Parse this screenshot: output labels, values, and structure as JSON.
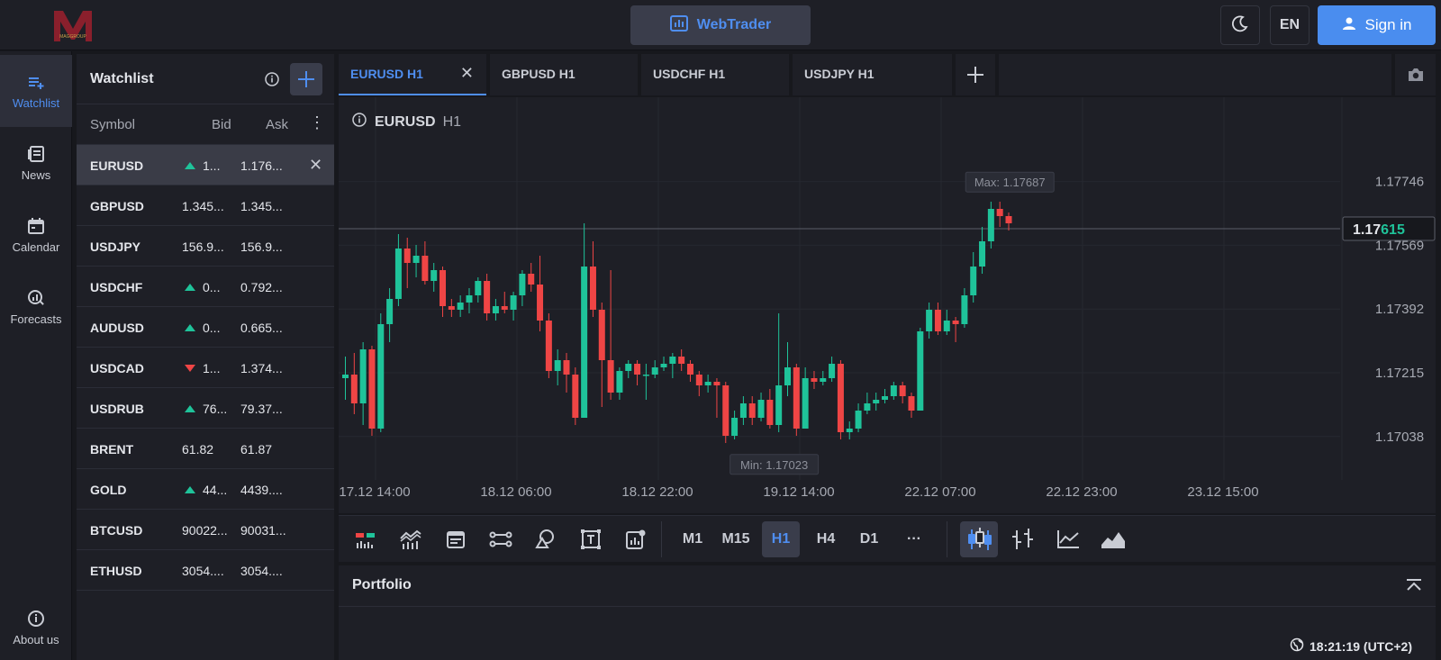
{
  "header": {
    "logo_text": "MAGGROUP",
    "webtrader_label": "WebTrader",
    "language": "EN",
    "signin_label": "Sign in"
  },
  "nav": {
    "items": [
      {
        "label": "Watchlist",
        "icon": "watchlist-icon"
      },
      {
        "label": "News",
        "icon": "news-icon"
      },
      {
        "label": "Calendar",
        "icon": "calendar-icon"
      },
      {
        "label": "Forecasts",
        "icon": "forecasts-icon"
      }
    ],
    "about": "About us"
  },
  "watchlist": {
    "title": "Watchlist",
    "columns": {
      "symbol": "Symbol",
      "bid": "Bid",
      "ask": "Ask"
    },
    "rows": [
      {
        "symbol": "EURUSD",
        "bid": "1...",
        "ask": "1.176...",
        "dir": "up"
      },
      {
        "symbol": "GBPUSD",
        "bid": "1.345...",
        "ask": "1.345...",
        "dir": ""
      },
      {
        "symbol": "USDJPY",
        "bid": "156.9...",
        "ask": "156.9...",
        "dir": ""
      },
      {
        "symbol": "USDCHF",
        "bid": "0...",
        "ask": "0.792...",
        "dir": "up"
      },
      {
        "symbol": "AUDUSD",
        "bid": "0...",
        "ask": "0.665...",
        "dir": "up"
      },
      {
        "symbol": "USDCAD",
        "bid": "1...",
        "ask": "1.374...",
        "dir": "down"
      },
      {
        "symbol": "USDRUB",
        "bid": "76...",
        "ask": "79.37...",
        "dir": "up"
      },
      {
        "symbol": "BRENT",
        "bid": "61.82",
        "ask": "61.87",
        "dir": ""
      },
      {
        "symbol": "GOLD",
        "bid": "44...",
        "ask": "4439....",
        "dir": "up"
      },
      {
        "symbol": "BTCUSD",
        "bid": "90022...",
        "ask": "90031...",
        "dir": ""
      },
      {
        "symbol": "ETHUSD",
        "bid": "3054....",
        "ask": "3054....",
        "dir": ""
      }
    ]
  },
  "tabs": [
    {
      "label": "EURUSD H1",
      "active": true
    },
    {
      "label": "GBPUSD H1",
      "active": false
    },
    {
      "label": "USDCHF H1",
      "active": false
    },
    {
      "label": "USDJPY H1",
      "active": false
    }
  ],
  "chart": {
    "symbol": "EURUSD",
    "timeframe": "H1",
    "current_price_main": "1.17",
    "current_price_tail": "615",
    "max_label": "Max: 1.17687",
    "min_label": "Min: 1.17023",
    "colors": {
      "up": "#1fc39a",
      "down": "#ef4545"
    }
  },
  "chart_data": {
    "type": "candlestick",
    "title": "EURUSD H1",
    "y_ticks": [
      1.17746,
      1.17569,
      1.17392,
      1.17215,
      1.17038
    ],
    "ylim": [
      1.1693,
      1.1785
    ],
    "current_price": 1.17615,
    "max": 1.17687,
    "min": 1.17023,
    "x_ticks": [
      "17.12 14:00",
      "18.12 06:00",
      "18.12 22:00",
      "19.12 14:00",
      "22.12 07:00",
      "22.12 23:00",
      "23.12 15:00"
    ],
    "candles": [
      [
        1.172,
        1.1721,
        1.1726,
        1.1714
      ],
      [
        1.1721,
        1.1713,
        1.1727,
        1.171
      ],
      [
        1.1713,
        1.1728,
        1.173,
        1.1707
      ],
      [
        1.1728,
        1.1706,
        1.1729,
        1.1704
      ],
      [
        1.1706,
        1.1735,
        1.1738,
        1.1705
      ],
      [
        1.1735,
        1.1742,
        1.1745,
        1.173
      ],
      [
        1.1742,
        1.1756,
        1.176,
        1.174
      ],
      [
        1.1756,
        1.1752,
        1.1759,
        1.1745
      ],
      [
        1.1752,
        1.1754,
        1.1757,
        1.1748
      ],
      [
        1.1754,
        1.1747,
        1.1758,
        1.1746
      ],
      [
        1.1747,
        1.175,
        1.1752,
        1.1744
      ],
      [
        1.175,
        1.174,
        1.1751,
        1.1737
      ],
      [
        1.174,
        1.1739,
        1.1742,
        1.1737
      ],
      [
        1.1739,
        1.1741,
        1.1743,
        1.1737
      ],
      [
        1.1741,
        1.1743,
        1.1745,
        1.1738
      ],
      [
        1.1743,
        1.1747,
        1.1748,
        1.1741
      ],
      [
        1.1747,
        1.1738,
        1.1749,
        1.1736
      ],
      [
        1.1738,
        1.174,
        1.1742,
        1.1736
      ],
      [
        1.174,
        1.1739,
        1.1744,
        1.1738
      ],
      [
        1.1739,
        1.1743,
        1.1744,
        1.1736
      ],
      [
        1.1743,
        1.1749,
        1.175,
        1.174
      ],
      [
        1.1749,
        1.1746,
        1.1752,
        1.1744
      ],
      [
        1.1746,
        1.1736,
        1.1754,
        1.1733
      ],
      [
        1.1736,
        1.1722,
        1.1738,
        1.172
      ],
      [
        1.1722,
        1.1725,
        1.1728,
        1.1718
      ],
      [
        1.1725,
        1.1721,
        1.1727,
        1.1716
      ],
      [
        1.1721,
        1.1709,
        1.1723,
        1.1707
      ],
      [
        1.1709,
        1.1751,
        1.1763,
        1.1709
      ],
      [
        1.1751,
        1.1739,
        1.1758,
        1.1737
      ],
      [
        1.1739,
        1.1725,
        1.1741,
        1.1712
      ],
      [
        1.1725,
        1.1716,
        1.175,
        1.1714
      ],
      [
        1.1716,
        1.1722,
        1.1723,
        1.1714
      ],
      [
        1.1722,
        1.1724,
        1.1725,
        1.172
      ],
      [
        1.1724,
        1.1721,
        1.1725,
        1.1718
      ],
      [
        1.1721,
        1.1721,
        1.1724,
        1.1714
      ],
      [
        1.1721,
        1.1723,
        1.1725,
        1.172
      ],
      [
        1.1723,
        1.1724,
        1.1726,
        1.1722
      ],
      [
        1.1724,
        1.1726,
        1.1727,
        1.172
      ],
      [
        1.1726,
        1.1724,
        1.1728,
        1.1722
      ],
      [
        1.1724,
        1.1721,
        1.1725,
        1.1719
      ],
      [
        1.1721,
        1.1718,
        1.1722,
        1.1715
      ],
      [
        1.1718,
        1.1719,
        1.1721,
        1.1716
      ],
      [
        1.1719,
        1.1718,
        1.172,
        1.1709
      ],
      [
        1.1718,
        1.1704,
        1.1719,
        1.1702
      ],
      [
        1.1704,
        1.1709,
        1.1711,
        1.1703
      ],
      [
        1.1709,
        1.1713,
        1.1715,
        1.1707
      ],
      [
        1.1713,
        1.1709,
        1.1715,
        1.1707
      ],
      [
        1.1709,
        1.1714,
        1.1716,
        1.1708
      ],
      [
        1.1714,
        1.1707,
        1.1717,
        1.1706
      ],
      [
        1.1707,
        1.1718,
        1.1738,
        1.1705
      ],
      [
        1.1718,
        1.1723,
        1.173,
        1.1715
      ],
      [
        1.1723,
        1.1706,
        1.1724,
        1.1704
      ],
      [
        1.1706,
        1.172,
        1.1723,
        1.1706
      ],
      [
        1.172,
        1.1719,
        1.1722,
        1.1717
      ],
      [
        1.1719,
        1.172,
        1.1722,
        1.1718
      ],
      [
        1.172,
        1.1724,
        1.1726,
        1.1719
      ],
      [
        1.1724,
        1.1705,
        1.1725,
        1.1703
      ],
      [
        1.1705,
        1.1706,
        1.1708,
        1.1703
      ],
      [
        1.1706,
        1.1711,
        1.1713,
        1.1705
      ],
      [
        1.1711,
        1.1713,
        1.1716,
        1.171
      ],
      [
        1.1713,
        1.1714,
        1.1716,
        1.1711
      ],
      [
        1.1714,
        1.1715,
        1.1717,
        1.1713
      ],
      [
        1.1715,
        1.1718,
        1.1719,
        1.1714
      ],
      [
        1.1718,
        1.1715,
        1.1719,
        1.1713
      ],
      [
        1.1715,
        1.1711,
        1.1716,
        1.1709
      ],
      [
        1.1711,
        1.1733,
        1.1734,
        1.1711
      ],
      [
        1.1733,
        1.1739,
        1.1741,
        1.1731
      ],
      [
        1.1739,
        1.1733,
        1.1741,
        1.1732
      ],
      [
        1.1733,
        1.1736,
        1.1739,
        1.1732
      ],
      [
        1.1736,
        1.1735,
        1.1737,
        1.173
      ],
      [
        1.1735,
        1.1743,
        1.1745,
        1.1734
      ],
      [
        1.1743,
        1.1751,
        1.1755,
        1.1741
      ],
      [
        1.1751,
        1.1758,
        1.1762,
        1.1749
      ],
      [
        1.1758,
        1.1767,
        1.1769,
        1.1756
      ],
      [
        1.1767,
        1.1765,
        1.1769,
        1.1762
      ],
      [
        1.1765,
        1.1763,
        1.1766,
        1.1761
      ]
    ]
  },
  "toolbar": {
    "timeframes": [
      "M1",
      "M15",
      "H1",
      "H4",
      "D1"
    ],
    "active_timeframe": "H1",
    "more": "···"
  },
  "portfolio": {
    "title": "Portfolio",
    "clock": "18:21:19 (UTC+2)"
  }
}
